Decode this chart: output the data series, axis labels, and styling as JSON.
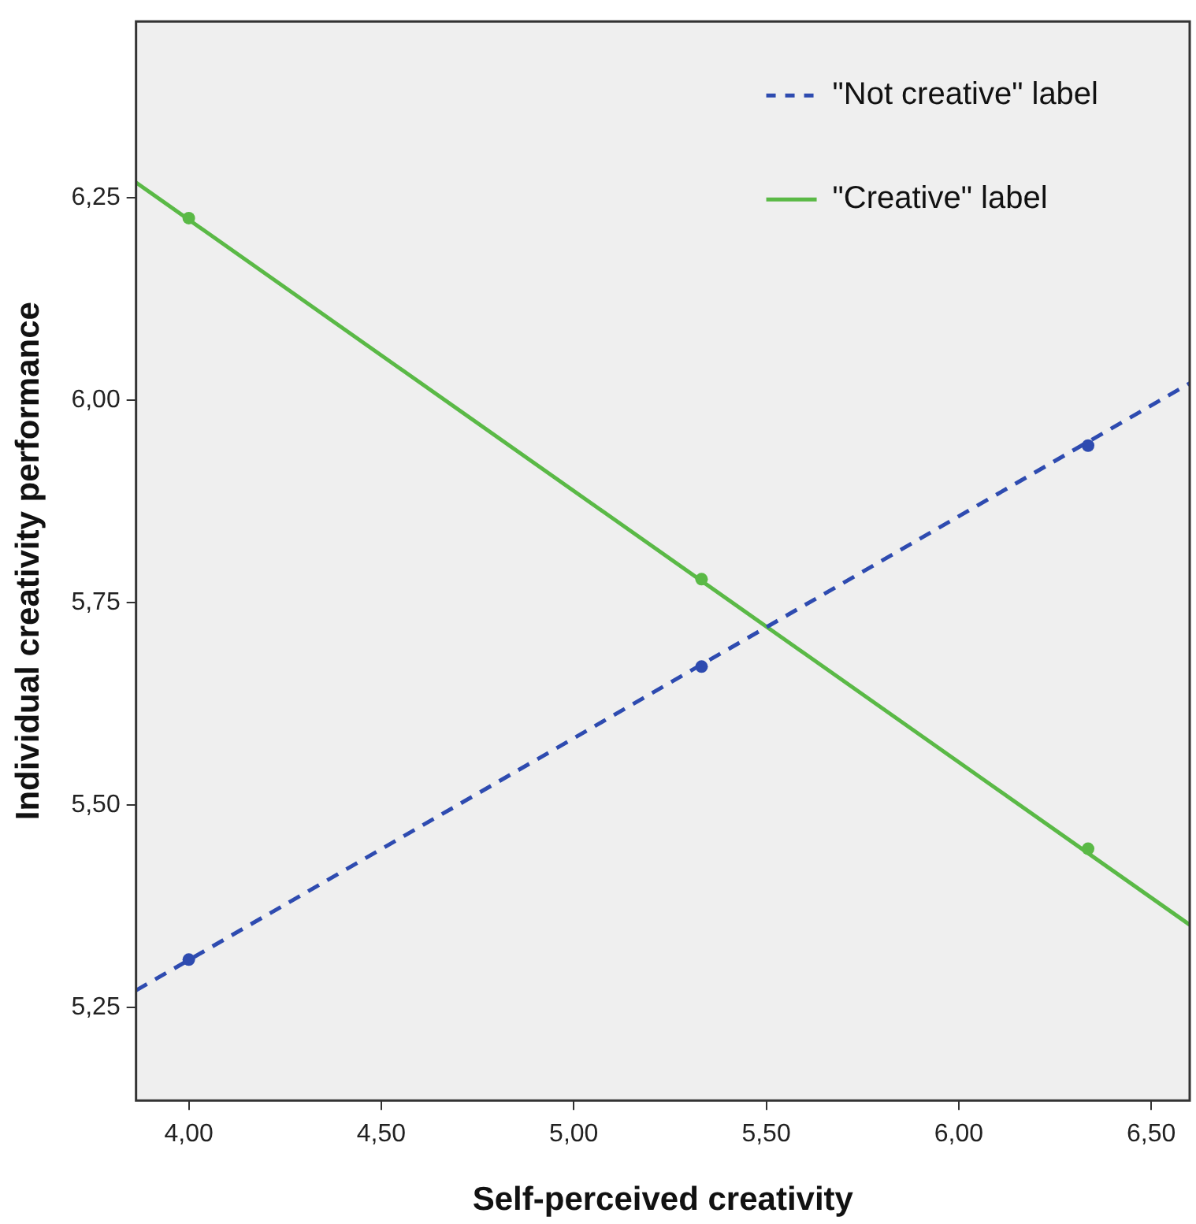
{
  "chart_data": {
    "type": "line",
    "xlabel": "Self-perceived creativity",
    "ylabel": "Individual creativity performance",
    "xlim": [
      3.863,
      6.6
    ],
    "ylim": [
      5.135,
      6.468
    ],
    "xticks": [
      {
        "value": 4,
        "label": "4,00"
      },
      {
        "value": 4.5,
        "label": "4,50"
      },
      {
        "value": 5,
        "label": "5,00"
      },
      {
        "value": 5.5,
        "label": "5,50"
      },
      {
        "value": 6,
        "label": "6,00"
      },
      {
        "value": 6.5,
        "label": "6,50"
      }
    ],
    "yticks": [
      {
        "value": 5.25,
        "label": "5,25"
      },
      {
        "value": 5.5,
        "label": "5,50"
      },
      {
        "value": 5.75,
        "label": "5,75"
      },
      {
        "value": 6,
        "label": "6,00"
      },
      {
        "value": 6.25,
        "label": "6,25"
      }
    ],
    "grid": false,
    "legend": "top right",
    "series": [
      {
        "name": "\"Not creative\" label",
        "type": "line",
        "color": "#2e4bb0",
        "line_style": "dashed",
        "marker": "none",
        "x": [
          3.863,
          6.6
        ],
        "values": [
          5.271,
          6.021
        ]
      },
      {
        "name": "\"Creative\" label",
        "type": "line",
        "color": "#5ab946",
        "line_style": "solid",
        "marker": "none",
        "x": [
          3.863,
          6.6
        ],
        "values": [
          6.269,
          5.352
        ]
      },
      {
        "type": "scatter",
        "color": "#2e4bb0",
        "marker": "circle",
        "x": [
          4,
          5.332,
          6.336
        ],
        "values": [
          5.309,
          5.671,
          5.944
        ]
      },
      {
        "type": "scatter",
        "color": "#5ab946",
        "marker": "circle",
        "x": [
          4,
          5.332,
          6.336
        ],
        "values": [
          6.225,
          5.779,
          5.446
        ]
      }
    ]
  }
}
